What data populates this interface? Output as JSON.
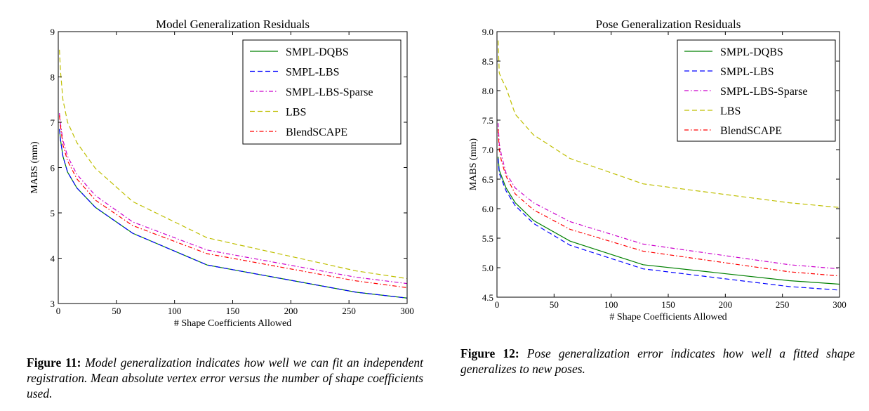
{
  "chart_data": [
    {
      "type": "line",
      "title": "Model Generalization Residuals",
      "xlabel": "# Shape Coefficients Allowed",
      "ylabel": "MABS (mm)",
      "xlim": [
        0,
        300
      ],
      "ylim": [
        3,
        9
      ],
      "xticks": [
        0,
        50,
        100,
        150,
        200,
        250,
        300
      ],
      "yticks": [
        3,
        4,
        5,
        6,
        7,
        8,
        9
      ],
      "ytick_labels": [
        "3",
        "4",
        "5",
        "6",
        "7",
        "8",
        "9"
      ],
      "legend_position": "top-right",
      "x": [
        1,
        2,
        4,
        8,
        16,
        32,
        64,
        128,
        256,
        300
      ],
      "series": [
        {
          "name": "SMPL-DQBS",
          "color": "#008000",
          "dash": "",
          "values": [
            6.85,
            6.6,
            6.25,
            5.9,
            5.55,
            5.12,
            4.55,
            3.85,
            3.25,
            3.12
          ]
        },
        {
          "name": "SMPL-LBS",
          "color": "#0000ff",
          "dash": "7,4",
          "values": [
            6.85,
            6.6,
            6.25,
            5.9,
            5.55,
            5.12,
            4.55,
            3.85,
            3.25,
            3.12
          ]
        },
        {
          "name": "SMPL-LBS-Sparse",
          "color": "#cc00cc",
          "dash": "6,3,1.5,3",
          "values": [
            7.2,
            6.95,
            6.6,
            6.25,
            5.85,
            5.38,
            4.8,
            4.18,
            3.58,
            3.44
          ]
        },
        {
          "name": "LBS",
          "color": "#bfbf00",
          "dash": "7,4",
          "values": [
            8.6,
            8.1,
            7.5,
            7.0,
            6.55,
            5.98,
            5.25,
            4.45,
            3.72,
            3.55
          ]
        },
        {
          "name": "BlendSCAPE",
          "color": "#ff0000",
          "dash": "6,3,1.5,3",
          "values": [
            7.15,
            6.9,
            6.5,
            6.15,
            5.75,
            5.28,
            4.72,
            4.1,
            3.5,
            3.35
          ]
        }
      ]
    },
    {
      "type": "line",
      "title": "Pose Generalization Residuals",
      "xlabel": "# Shape Coefficients Allowed",
      "ylabel": "MABS (mm)",
      "xlim": [
        0,
        300
      ],
      "ylim": [
        4.5,
        9.0
      ],
      "xticks": [
        0,
        50,
        100,
        150,
        200,
        250,
        300
      ],
      "yticks": [
        4.5,
        5.0,
        5.5,
        6.0,
        6.5,
        7.0,
        7.5,
        8.0,
        8.5,
        9.0
      ],
      "ytick_labels": [
        "4.5",
        "5.0",
        "5.5",
        "6.0",
        "6.5",
        "7.0",
        "7.5",
        "8.0",
        "8.5",
        "9.0"
      ],
      "legend_position": "top-right",
      "x": [
        1,
        2,
        4,
        8,
        16,
        32,
        64,
        128,
        256,
        300
      ],
      "series": [
        {
          "name": "SMPL-DQBS",
          "color": "#008000",
          "dash": "",
          "values": [
            6.88,
            6.65,
            6.55,
            6.35,
            6.1,
            5.8,
            5.45,
            5.05,
            4.78,
            4.72
          ]
        },
        {
          "name": "SMPL-LBS",
          "color": "#0000ff",
          "dash": "7,4",
          "values": [
            6.85,
            6.6,
            6.5,
            6.3,
            6.05,
            5.75,
            5.38,
            4.98,
            4.68,
            4.62
          ]
        },
        {
          "name": "SMPL-LBS-Sparse",
          "color": "#cc00cc",
          "dash": "6,3,1.5,3",
          "values": [
            7.45,
            7.1,
            6.9,
            6.6,
            6.35,
            6.1,
            5.78,
            5.4,
            5.05,
            4.98
          ]
        },
        {
          "name": "LBS",
          "color": "#bfbf00",
          "dash": "7,4",
          "values": [
            8.85,
            8.3,
            8.2,
            8.05,
            7.6,
            7.25,
            6.85,
            6.42,
            6.1,
            6.02
          ]
        },
        {
          "name": "BlendSCAPE",
          "color": "#ff0000",
          "dash": "6,3,1.5,3",
          "values": [
            7.35,
            7.0,
            6.8,
            6.55,
            6.25,
            5.98,
            5.65,
            5.28,
            4.93,
            4.86
          ]
        }
      ]
    }
  ],
  "captions": {
    "fig11": {
      "label": "Figure 11:",
      "text": "Model generalization indicates how well we can fit an independent registration.  Mean absolute vertex error versus the number of shape coefficients used."
    },
    "fig12": {
      "label": "Figure 12:",
      "text": "Pose generalization error indicates how well a fitted shape generalizes to new poses."
    }
  }
}
